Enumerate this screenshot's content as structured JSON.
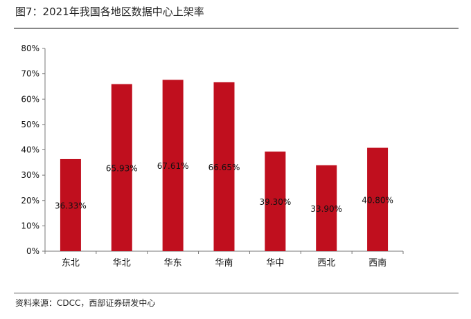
{
  "title": "图7：2021年我国各地区数据中心上架率",
  "source": "资料来源：CDCC，西部证券研发中心",
  "chart_data": {
    "type": "bar",
    "categories": [
      "东北",
      "华北",
      "华东",
      "华南",
      "华中",
      "西北",
      "西南"
    ],
    "values": [
      36.33,
      65.93,
      67.61,
      66.65,
      39.3,
      33.9,
      40.8
    ],
    "data_labels": [
      "36.33%",
      "65.93%",
      "67.61%",
      "66.65%",
      "39.30%",
      "33.90%",
      "40.80%"
    ],
    "ylim": [
      0,
      80
    ],
    "yticks": [
      "0%",
      "10%",
      "20%",
      "30%",
      "40%",
      "50%",
      "60%",
      "70%",
      "80%"
    ],
    "grid": false,
    "bar_color": "#C00F1E"
  }
}
